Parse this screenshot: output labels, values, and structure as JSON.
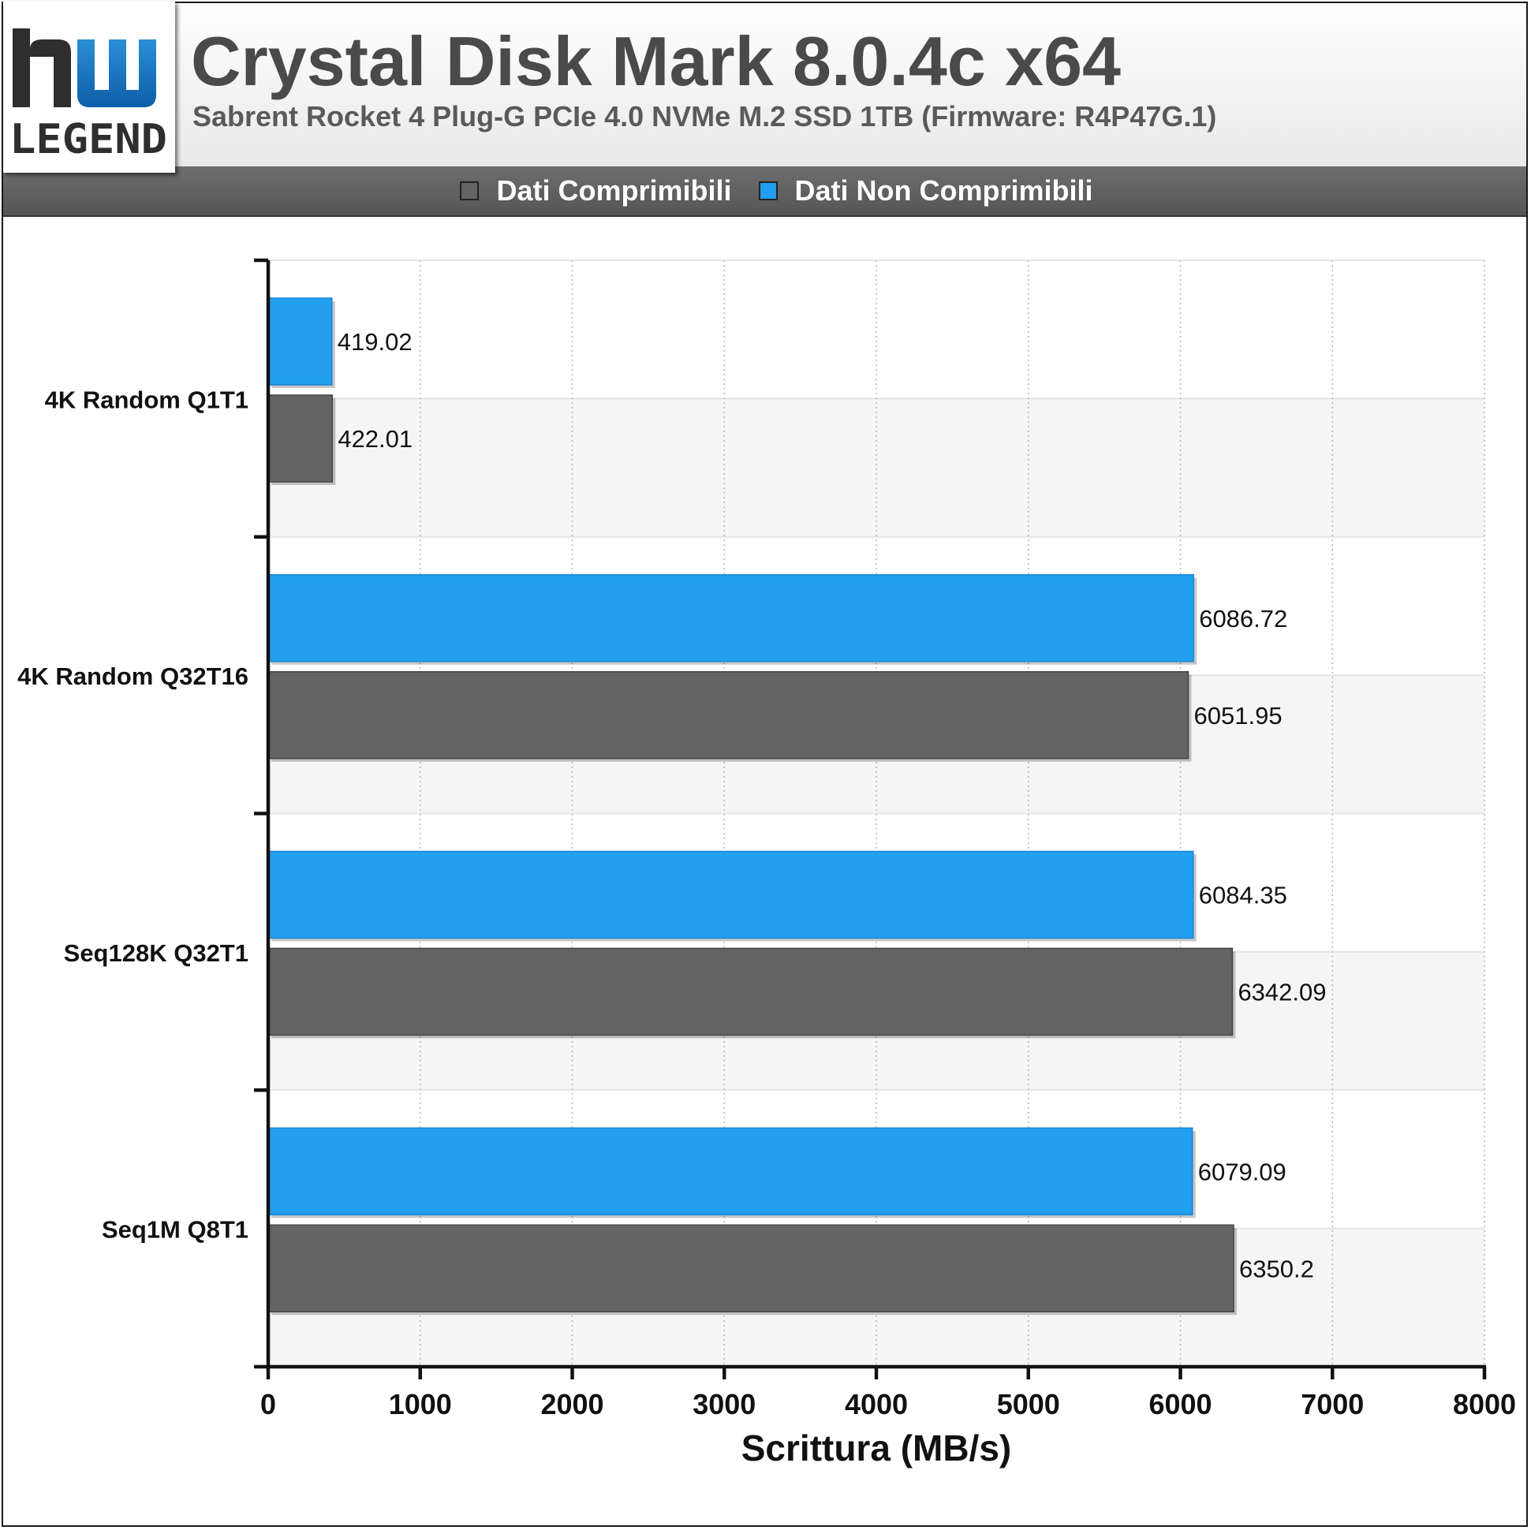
{
  "header": {
    "title": "Crystal Disk Mark 8.0.4c x64",
    "subtitle": "Sabrent Rocket 4 Plug-G PCIe 4.0 NVMe M.2 SSD 1TB (Firmware: R4P47G.1)",
    "logo_text": "hw LEGEND"
  },
  "colors": {
    "compressible": "#646464",
    "non_compressible": "#229fef"
  },
  "chart_data": {
    "type": "bar",
    "orientation": "horizontal",
    "title": "Crystal Disk Mark 8.0.4c x64",
    "subtitle": "Sabrent Rocket 4 Plug-G PCIe 4.0 NVMe M.2 SSD 1TB (Firmware: R4P47G.1)",
    "xlabel": "Scrittura (MB/s)",
    "ylabel": "",
    "xlim": [
      0,
      8000
    ],
    "xticks": [
      "0",
      "1000",
      "2000",
      "3000",
      "4000",
      "5000",
      "6000",
      "7000",
      "8000"
    ],
    "grid": true,
    "legend_position": "top",
    "categories": [
      "4K Random Q1T1",
      "4K Random Q32T16",
      "Seq128K Q32T1",
      "Seq1M Q8T1"
    ],
    "series": [
      {
        "name": "Dati Comprimibili",
        "color": "#646464",
        "values": [
          422.01,
          6051.95,
          6342.09,
          6350.2
        ],
        "labels": [
          "422.01",
          "6051.95",
          "6342.09",
          "6350.2"
        ]
      },
      {
        "name": "Dati Non Comprimibili",
        "color": "#229fef",
        "values": [
          419.02,
          6086.72,
          6084.35,
          6079.09
        ],
        "labels": [
          "419.02",
          "6086.72",
          "6084.35",
          "6079.09"
        ]
      }
    ]
  }
}
